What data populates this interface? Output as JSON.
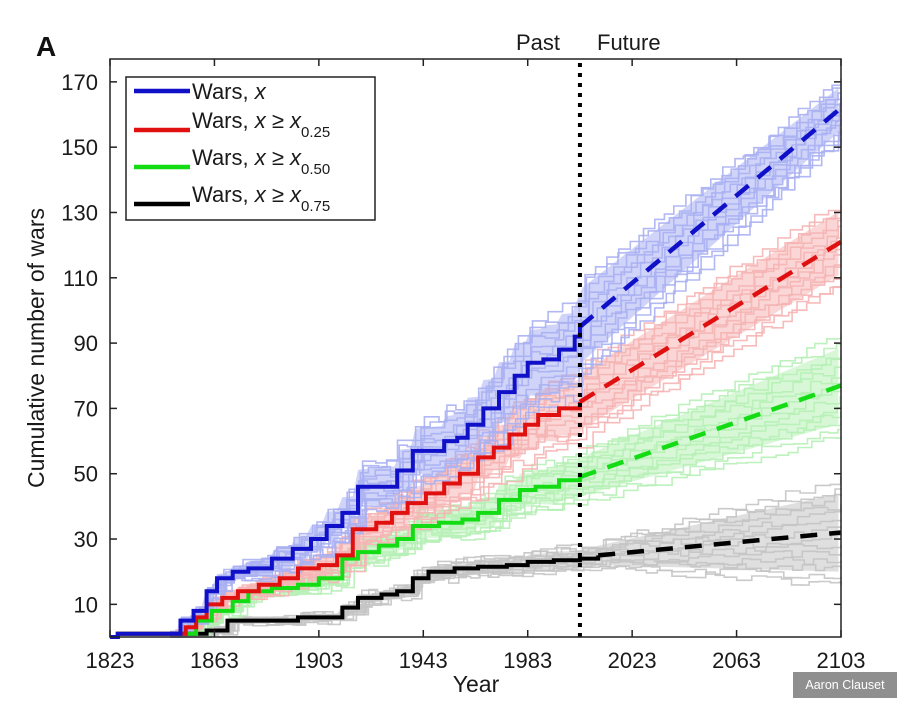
{
  "credit": "Aaron Clauset",
  "chart_data": {
    "type": "line",
    "panel_label": "A",
    "title": "",
    "xlabel": "Year",
    "ylabel": "Cumulative number of wars",
    "xlim": [
      1823,
      2103
    ],
    "ylim": [
      0,
      177
    ],
    "xticks": [
      1823,
      1863,
      1903,
      1943,
      1983,
      2023,
      2063,
      2103
    ],
    "yticks": [
      10,
      30,
      50,
      70,
      90,
      110,
      130,
      150,
      170
    ],
    "grid": false,
    "legend_position": "top-left",
    "divider": {
      "year": 2003,
      "style": "dotted",
      "left_label": "Past",
      "right_label": "Future"
    },
    "series": [
      {
        "name": "Wars, x",
        "legend": {
          "main": "Wars, x",
          "sub": ""
        },
        "color": "#1010c8",
        "band_color": "#aab0f2",
        "observed": {
          "x": [
            1823,
            1826,
            1846,
            1850,
            1855,
            1860,
            1864,
            1870,
            1876,
            1885,
            1893,
            1900,
            1906,
            1912,
            1918,
            1928,
            1933,
            1939,
            1945,
            1951,
            1956,
            1960,
            1966,
            1972,
            1978,
            1983,
            1989,
            1995,
            2001,
            2003
          ],
          "y": [
            0,
            1,
            1,
            5,
            8,
            14,
            18,
            20,
            21,
            24,
            27,
            30,
            34,
            38,
            46,
            46,
            51,
            57,
            57,
            60,
            61,
            65,
            70,
            75,
            80,
            84,
            85,
            88,
            92,
            95
          ]
        },
        "projection": {
          "x": [
            2003,
            2103
          ],
          "y": [
            95,
            162
          ]
        },
        "ensemble_range_end": [
          152,
          170
        ]
      },
      {
        "name": "Wars, x ≥ x0.25",
        "legend": {
          "main": "Wars, x ≥ x",
          "sub": "0.25"
        },
        "color": "#e01010",
        "band_color": "#f6b4b4",
        "observed": {
          "x": [
            1823,
            1826,
            1848,
            1852,
            1856,
            1860,
            1866,
            1872,
            1880,
            1888,
            1895,
            1903,
            1910,
            1916,
            1925,
            1931,
            1937,
            1944,
            1951,
            1957,
            1964,
            1970,
            1976,
            1982,
            1987,
            1995,
            2003
          ],
          "y": [
            0,
            1,
            1,
            3,
            6,
            10,
            12,
            14,
            16,
            18,
            21,
            22,
            25,
            33,
            35,
            38,
            41,
            44,
            47,
            50,
            55,
            58,
            62,
            65,
            68,
            70,
            72
          ]
        },
        "projection": {
          "x": [
            2003,
            2103
          ],
          "y": [
            72,
            121
          ]
        },
        "ensemble_range_end": [
          108,
          134
        ]
      },
      {
        "name": "Wars, x ≥ x0.50",
        "legend": {
          "main": "Wars, x ≥ x",
          "sub": "0.50"
        },
        "color": "#14dc14",
        "band_color": "#b6f0b6",
        "observed": {
          "x": [
            1823,
            1826,
            1850,
            1856,
            1862,
            1870,
            1876,
            1885,
            1895,
            1903,
            1912,
            1918,
            1926,
            1933,
            1939,
            1949,
            1958,
            1964,
            1972,
            1980,
            1986,
            1995,
            2003
          ],
          "y": [
            0,
            1,
            1,
            5,
            8,
            11,
            14,
            15,
            16,
            18,
            24,
            26,
            28,
            30,
            34,
            35,
            36,
            38,
            42,
            45,
            46,
            48,
            49
          ]
        },
        "projection": {
          "x": [
            2003,
            2103
          ],
          "y": [
            49,
            77
          ]
        },
        "ensemble_range_end": [
          64,
          95
        ]
      },
      {
        "name": "Wars, x ≥ x0.75",
        "legend": {
          "main": "Wars, x ≥ x",
          "sub": "0.75"
        },
        "color": "#000000",
        "band_color": "#c4c4c4",
        "observed": {
          "x": [
            1823,
            1826,
            1856,
            1860,
            1868,
            1880,
            1895,
            1903,
            1912,
            1918,
            1927,
            1933,
            1939,
            1945,
            1955,
            1964,
            1975,
            1983,
            1993,
            2003,
            2010
          ],
          "y": [
            0,
            1,
            1,
            2,
            5,
            5,
            6,
            6,
            9,
            12,
            13,
            14,
            18,
            20,
            21,
            21.5,
            22,
            23,
            23.5,
            24,
            25
          ]
        },
        "projection": {
          "x": [
            2010,
            2103
          ],
          "y": [
            25,
            32
          ]
        },
        "ensemble_range_end": [
          24,
          56
        ]
      }
    ]
  }
}
